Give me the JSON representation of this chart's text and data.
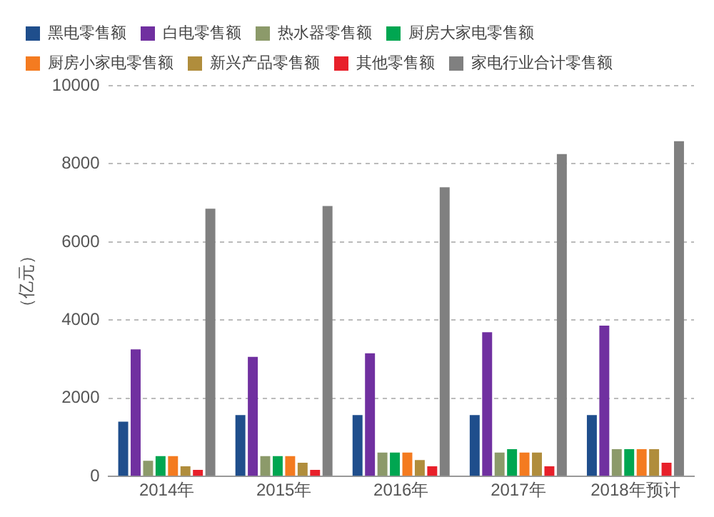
{
  "chart_data": {
    "type": "bar",
    "ylabel": "（亿元）",
    "categories": [
      "2014年",
      "2015年",
      "2016年",
      "2017年",
      "2018年预计"
    ],
    "series": [
      {
        "name": "黑电零售额",
        "color": "#1f4e8c",
        "values": [
          1400,
          1570,
          1570,
          1570,
          1570
        ]
      },
      {
        "name": "白电零售额",
        "color": "#7030a0",
        "values": [
          3250,
          3060,
          3150,
          3690,
          3860
        ]
      },
      {
        "name": "热水器零售额",
        "color": "#8c9a6a",
        "values": [
          400,
          520,
          610,
          610,
          700
        ]
      },
      {
        "name": "厨房大家电零售额",
        "color": "#00a651",
        "values": [
          520,
          520,
          610,
          700,
          700
        ]
      },
      {
        "name": "厨房小家电零售额",
        "color": "#f47b20",
        "values": [
          520,
          520,
          610,
          610,
          700
        ]
      },
      {
        "name": "新兴产品零售额",
        "color": "#b08d3c",
        "values": [
          260,
          350,
          420,
          610,
          700
        ]
      },
      {
        "name": "其他零售额",
        "color": "#e8202a",
        "values": [
          170,
          170,
          260,
          260,
          350
        ]
      },
      {
        "name": "家电行业合计零售额",
        "color": "#808080",
        "values": [
          6850,
          6920,
          7400,
          8250,
          8580
        ]
      }
    ],
    "ylim": [
      0,
      10000
    ],
    "yticks": [
      0,
      2000,
      4000,
      6000,
      8000,
      10000
    ],
    "grid": "y",
    "legend": "top"
  }
}
